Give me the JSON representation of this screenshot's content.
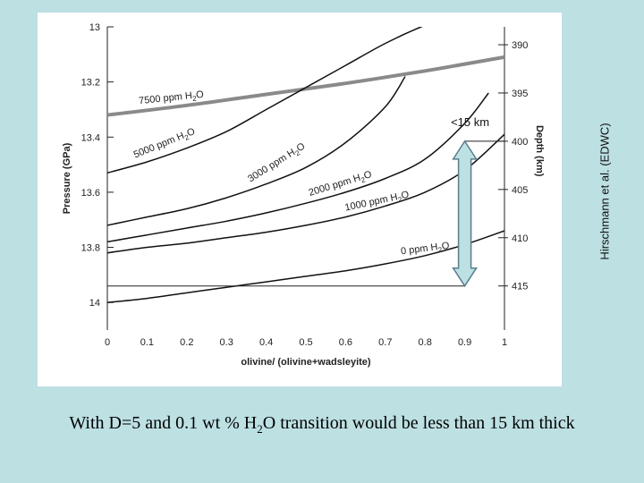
{
  "chart_data": {
    "type": "line",
    "xlabel": "olivine/ (olivine+wadsleyite)",
    "ylabel": "Pressure (GPa)",
    "y2label": "Depth (km)",
    "xlim": [
      0,
      1
    ],
    "ylim": [
      13,
      14.1
    ],
    "x_ticks": [
      "0",
      "0.1",
      "0.2",
      "0.3",
      "0.4",
      "0.5",
      "0.6",
      "0.7",
      "0.8",
      "0.9",
      "1"
    ],
    "y_ticks": [
      {
        "value": 13,
        "label": "13"
      },
      {
        "value": 13.2,
        "label": "13.2"
      },
      {
        "value": 13.4,
        "label": "13.4"
      },
      {
        "value": 13.6,
        "label": "13.6"
      },
      {
        "value": 13.8,
        "label": "13.8"
      },
      {
        "value": 14,
        "label": "14"
      }
    ],
    "depth_ticks": [
      {
        "pressure": 13.065,
        "label": "390"
      },
      {
        "pressure": 13.24,
        "label": "395"
      },
      {
        "pressure": 13.415,
        "label": "400"
      },
      {
        "pressure": 13.59,
        "label": "405"
      },
      {
        "pressure": 13.765,
        "label": "410"
      },
      {
        "pressure": 13.94,
        "label": "415"
      }
    ],
    "series": [
      {
        "name": "7500 ppm H2O",
        "label": "7500 ppm H",
        "sub": "2",
        "tail": "O",
        "x": [
          0,
          0.2,
          0.4,
          0.6,
          0.8,
          0.9,
          1.0
        ],
        "y": [
          13.32,
          13.285,
          13.245,
          13.205,
          13.16,
          13.135,
          13.11
        ]
      },
      {
        "name": "5000 ppm H2O",
        "label": "5000 ppm H",
        "sub": "2",
        "tail": "O",
        "x": [
          0,
          0.1,
          0.2,
          0.3,
          0.4,
          0.5,
          0.6,
          0.7,
          0.79,
          0.85
        ],
        "y": [
          13.53,
          13.49,
          13.44,
          13.38,
          13.3,
          13.22,
          13.14,
          13.06,
          13.0,
          12.97
        ]
      },
      {
        "name": "3000 ppm H2O",
        "label": "3000 ppm H",
        "sub": "2",
        "tail": "O",
        "x": [
          0,
          0.1,
          0.2,
          0.3,
          0.4,
          0.5,
          0.6,
          0.7,
          0.75
        ],
        "y": [
          13.72,
          13.69,
          13.66,
          13.62,
          13.57,
          13.51,
          13.42,
          13.29,
          13.18
        ]
      },
      {
        "name": "2000 ppm H2O",
        "label": "2000 ppm H",
        "sub": "2",
        "tail": "O",
        "x": [
          0,
          0.1,
          0.2,
          0.3,
          0.4,
          0.5,
          0.6,
          0.7,
          0.8,
          0.9,
          0.96
        ],
        "y": [
          13.78,
          13.755,
          13.73,
          13.705,
          13.675,
          13.64,
          13.6,
          13.55,
          13.48,
          13.35,
          13.24
        ]
      },
      {
        "name": "1000 ppm H2O",
        "label": "1000 ppm H",
        "sub": "2",
        "tail": "O",
        "x": [
          0,
          0.1,
          0.2,
          0.3,
          0.4,
          0.5,
          0.6,
          0.7,
          0.8,
          0.9,
          1.0
        ],
        "y": [
          13.82,
          13.8,
          13.785,
          13.765,
          13.745,
          13.72,
          13.69,
          13.65,
          13.6,
          13.52,
          13.39
        ]
      },
      {
        "name": "0 ppm H2O",
        "label": "0 ppm H",
        "sub": "2",
        "tail": "O",
        "x": [
          0,
          0.1,
          0.2,
          0.3,
          0.4,
          0.5,
          0.6,
          0.7,
          0.8,
          0.9,
          1.0
        ],
        "y": [
          14.0,
          13.985,
          13.965,
          13.945,
          13.925,
          13.905,
          13.885,
          13.86,
          13.83,
          13.79,
          13.74
        ]
      }
    ],
    "annotation": {
      "text": "<15 km",
      "x": 0.9,
      "y_top": 13.415,
      "y_bottom": 13.94
    }
  },
  "credit": "Hirschmann et al. (EDWC)",
  "caption": {
    "pre": "With D=5 and 0.1 wt % H",
    "sub": "2",
    "post": "O transition would be less than 15 km thick"
  },
  "colors": {
    "line": "#111111",
    "thick_line": "#8a8a8a",
    "arrow_fill": "#bde0e3",
    "arrow_stroke": "#5a7f8c"
  }
}
